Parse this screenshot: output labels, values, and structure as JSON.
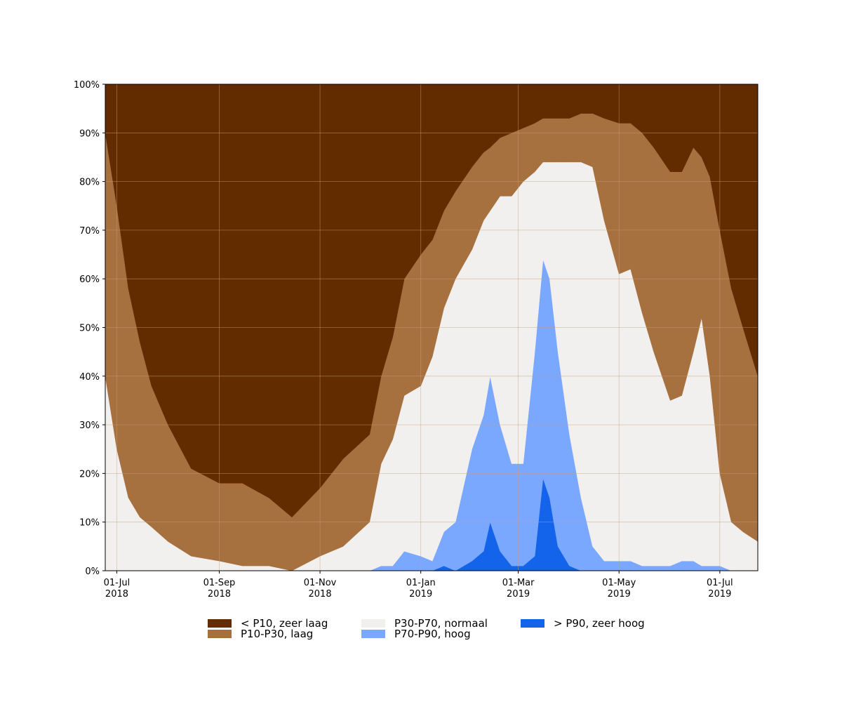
{
  "chart_data": {
    "type": "stacked_area",
    "x": [
      "2018-06-24",
      "2018-07-01",
      "2018-07-08",
      "2018-07-15",
      "2018-07-22",
      "2018-08-01",
      "2018-08-15",
      "2018-09-01",
      "2018-09-15",
      "2018-10-01",
      "2018-10-15",
      "2018-11-01",
      "2018-11-15",
      "2018-12-01",
      "2018-12-08",
      "2018-12-15",
      "2018-12-22",
      "2019-01-01",
      "2019-01-08",
      "2019-01-15",
      "2019-01-22",
      "2019-02-01",
      "2019-02-08",
      "2019-02-12",
      "2019-02-18",
      "2019-02-25",
      "2019-03-04",
      "2019-03-11",
      "2019-03-16",
      "2019-03-20",
      "2019-03-25",
      "2019-04-01",
      "2019-04-08",
      "2019-04-15",
      "2019-04-22",
      "2019-05-01",
      "2019-05-08",
      "2019-05-15",
      "2019-05-22",
      "2019-06-01",
      "2019-06-08",
      "2019-06-15",
      "2019-06-20",
      "2019-06-25",
      "2019-07-01",
      "2019-07-08",
      "2019-07-15",
      "2019-07-24"
    ],
    "series": [
      {
        "name": "< P10, zeer laag",
        "color": "#632b00",
        "values": [
          10,
          25,
          42,
          53,
          62,
          70,
          79,
          82,
          82,
          85,
          89,
          83,
          77,
          72,
          60,
          52,
          40,
          35,
          32,
          26,
          22,
          17,
          14,
          13,
          11,
          10,
          9,
          8,
          7,
          7,
          7,
          7,
          6,
          6,
          7,
          8,
          8,
          10,
          13,
          18,
          18,
          13,
          15,
          19,
          30,
          42,
          50,
          60
        ]
      },
      {
        "name": "P10-P30, laag",
        "color": "#a6703f",
        "values": [
          50,
          50,
          43,
          36,
          29,
          24,
          18,
          16,
          17,
          14,
          11,
          14,
          18,
          18,
          18,
          21,
          24,
          27,
          24,
          20,
          18,
          17,
          14,
          13,
          12,
          13,
          11,
          10,
          9,
          9,
          9,
          9,
          10,
          11,
          21,
          31,
          30,
          37,
          42,
          47,
          46,
          42,
          33,
          41,
          50,
          48,
          42,
          34
        ]
      },
      {
        "name": "P30-P70, normaal",
        "color": "#f2f0ef",
        "values": [
          40,
          25,
          15,
          11,
          9,
          6,
          3,
          2,
          1,
          1,
          0,
          3,
          5,
          10,
          21,
          26,
          32,
          35,
          42,
          46,
          50,
          41,
          40,
          34,
          47,
          55,
          58,
          37,
          20,
          24,
          39,
          56,
          69,
          78,
          70,
          59,
          60,
          52,
          44,
          34,
          34,
          43,
          51,
          39,
          19,
          10,
          8,
          6
        ]
      },
      {
        "name": "P70-P90, hoog",
        "color": "#7aa8ff",
        "values": [
          0,
          0,
          0,
          0,
          0,
          0,
          0,
          0,
          0,
          0,
          0,
          0,
          0,
          0,
          1,
          1,
          4,
          3,
          2,
          7,
          10,
          23,
          28,
          30,
          26,
          21,
          21,
          42,
          45,
          45,
          40,
          27,
          15,
          5,
          2,
          2,
          2,
          1,
          1,
          1,
          2,
          2,
          1,
          1,
          1,
          0,
          0,
          0
        ]
      },
      {
        "name": "> P90, zeer hoog",
        "color": "#1464eb",
        "values": [
          0,
          0,
          0,
          0,
          0,
          0,
          0,
          0,
          0,
          0,
          0,
          0,
          0,
          0,
          0,
          0,
          0,
          0,
          0,
          1,
          0,
          2,
          4,
          10,
          4,
          1,
          1,
          3,
          19,
          15,
          5,
          1,
          0,
          0,
          0,
          0,
          0,
          0,
          0,
          0,
          0,
          0,
          0,
          0,
          0,
          0,
          0,
          0
        ]
      }
    ],
    "xlim": [
      "2018-06-24",
      "2019-07-24"
    ],
    "xticks": [
      {
        "value": "2018-07-01",
        "label": [
          "01-Jul",
          "2018"
        ]
      },
      {
        "value": "2018-09-01",
        "label": [
          "01-Sep",
          "2018"
        ]
      },
      {
        "value": "2018-11-01",
        "label": [
          "01-Nov",
          "2018"
        ]
      },
      {
        "value": "2019-01-01",
        "label": [
          "01-Jan",
          "2019"
        ]
      },
      {
        "value": "2019-03-01",
        "label": [
          "01-Mar",
          "2019"
        ]
      },
      {
        "value": "2019-05-01",
        "label": [
          "01-May",
          "2019"
        ]
      },
      {
        "value": "2019-07-01",
        "label": [
          "01-Jul",
          "2019"
        ]
      }
    ],
    "ylim": [
      0,
      100
    ],
    "yticks": [
      {
        "value": 0,
        "label": "0%"
      },
      {
        "value": 10,
        "label": "10%"
      },
      {
        "value": 20,
        "label": "20%"
      },
      {
        "value": 30,
        "label": "30%"
      },
      {
        "value": 40,
        "label": "40%"
      },
      {
        "value": 50,
        "label": "50%"
      },
      {
        "value": 60,
        "label": "60%"
      },
      {
        "value": 70,
        "label": "70%"
      },
      {
        "value": 80,
        "label": "80%"
      },
      {
        "value": 90,
        "label": "90%"
      },
      {
        "value": 100,
        "label": "100%"
      }
    ],
    "grid": true,
    "legend": "lower center"
  }
}
